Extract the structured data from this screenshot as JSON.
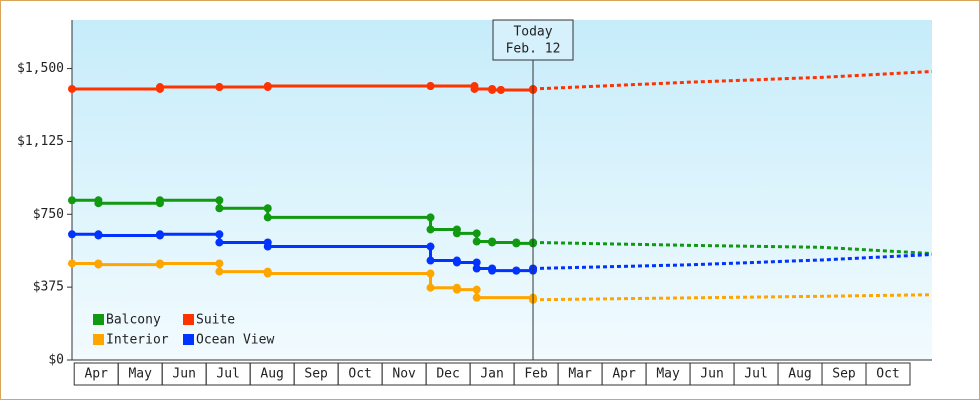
{
  "chart_data": {
    "type": "step-line",
    "series": [
      {
        "name": "Balcony",
        "color": "#119911",
        "x": [
          -0.05,
          0.55,
          1.95,
          3.3,
          4.4,
          8.1,
          8.7,
          9.15,
          9.5,
          10.05,
          10.43
        ],
        "values": [
          822,
          807,
          822,
          781,
          734,
          672,
          652,
          610,
          605,
          600,
          605
        ],
        "forecast_x": [
          10.43,
          14,
          17,
          19.5
        ],
        "forecast_values": [
          605,
          590,
          580,
          548
        ]
      },
      {
        "name": "Suite",
        "color": "#ff3300",
        "x": [
          -0.05,
          1.95,
          3.3,
          4.4,
          8.1,
          9.1,
          9.5,
          9.7,
          10.43
        ],
        "values": [
          1395,
          1405,
          1405,
          1410,
          1410,
          1395,
          1390,
          1390,
          1395
        ],
        "forecast_x": [
          10.43,
          14,
          17,
          19.5
        ],
        "forecast_values": [
          1395,
          1430,
          1455,
          1485
        ]
      },
      {
        "name": "Interior",
        "color": "#ffa500",
        "x": [
          -0.05,
          0.55,
          1.95,
          3.3,
          4.4,
          8.1,
          8.7,
          9.15,
          10.43
        ],
        "values": [
          497,
          491,
          497,
          455,
          445,
          372,
          362,
          321,
          310
        ],
        "forecast_x": [
          10.43,
          14,
          17,
          19.5
        ],
        "forecast_values": [
          310,
          320,
          328,
          336
        ]
      },
      {
        "name": "Ocean View",
        "color": "#0033ff",
        "x": [
          -0.05,
          0.55,
          1.95,
          3.3,
          4.4,
          8.1,
          8.7,
          9.15,
          9.5,
          10.05,
          10.43
        ],
        "values": [
          647,
          641,
          647,
          605,
          584,
          512,
          502,
          471,
          460,
          460,
          471
        ],
        "forecast_x": [
          10.43,
          14,
          17,
          19.5
        ],
        "forecast_values": [
          471,
          490,
          515,
          543
        ]
      }
    ],
    "today": {
      "x": 10.43,
      "label": [
        "Today",
        "Feb. 12"
      ]
    },
    "xlim": [
      -0.05,
      19.5
    ],
    "xticks": [
      {
        "value": 0.5,
        "label": "Apr"
      },
      {
        "value": 1.5,
        "label": "May"
      },
      {
        "value": 2.5,
        "label": "Jun"
      },
      {
        "value": 3.5,
        "label": "Jul"
      },
      {
        "value": 4.5,
        "label": "Aug"
      },
      {
        "value": 5.5,
        "label": "Sep"
      },
      {
        "value": 6.5,
        "label": "Oct"
      },
      {
        "value": 7.5,
        "label": "Nov"
      },
      {
        "value": 8.5,
        "label": "Dec"
      },
      {
        "value": 9.5,
        "label": "Jan"
      },
      {
        "value": 10.5,
        "label": "Feb"
      },
      {
        "value": 11.5,
        "label": "Mar"
      },
      {
        "value": 12.5,
        "label": "Apr"
      },
      {
        "value": 13.5,
        "label": "May"
      },
      {
        "value": 14.5,
        "label": "Jun"
      },
      {
        "value": 15.5,
        "label": "Jul"
      },
      {
        "value": 16.5,
        "label": "Aug"
      },
      {
        "value": 17.5,
        "label": "Sep"
      },
      {
        "value": 18.5,
        "label": "Oct"
      }
    ],
    "ylim": [
      0,
      1750
    ],
    "yticks": [
      {
        "value": 0,
        "label": "$0"
      },
      {
        "value": 375,
        "label": "$375"
      },
      {
        "value": 750,
        "label": "$750"
      },
      {
        "value": 1125,
        "label": "$1,125"
      },
      {
        "value": 1500,
        "label": "$1,500"
      }
    ],
    "legend": "lower left"
  }
}
